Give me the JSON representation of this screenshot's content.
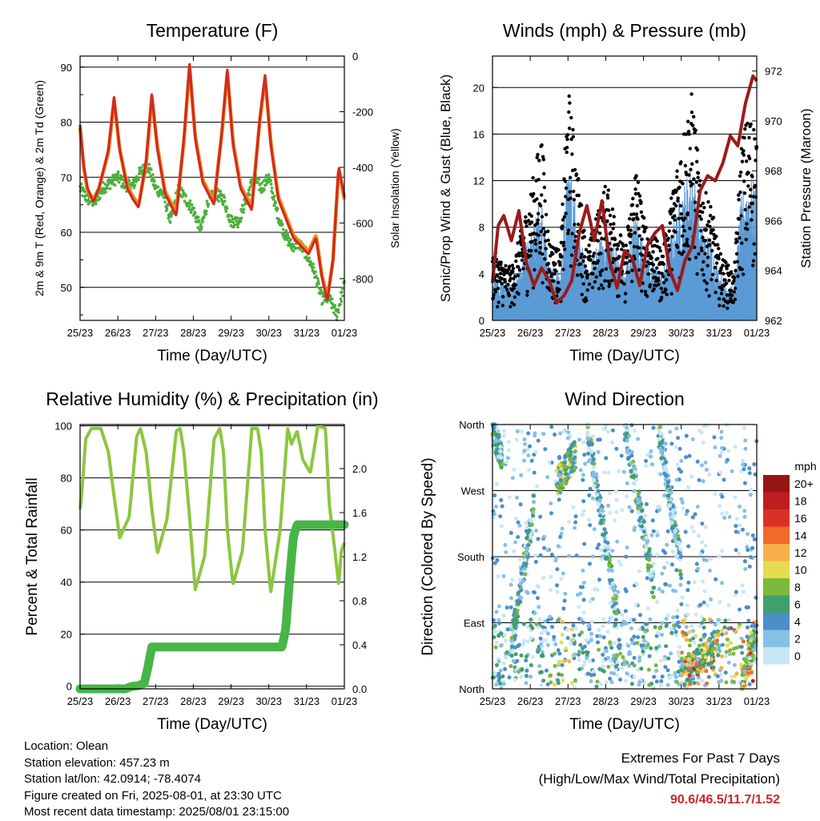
{
  "x_ticks": [
    "25/23",
    "26/23",
    "27/23",
    "28/23",
    "29/23",
    "30/23",
    "31/23",
    "01/23"
  ],
  "info": {
    "location": "Location: Olean",
    "elevation": "Station elevation: 457.23 m",
    "latlon": "Station lat/lon: 42.0914; -78.4074",
    "created": "Figure created on Fri, 2025-08-01, at 23:30 UTC",
    "recent": "Most recent data timestamp: 2025/08/01 23:15:00"
  },
  "extremes": {
    "title": "Extremes For Past 7 Days",
    "subtitle": "(High/Low/Max Wind/Total Precipitation)",
    "values": "90.6/46.5/11.7/1.52",
    "color": "#c8282d"
  },
  "colors": {
    "temp2m": "#d22a1e",
    "temp9m": "#f28c1e",
    "dewpoint": "#4daf3c",
    "wind": "#5b9bd5",
    "gust": "#000000",
    "pressure": "#9b1b1b",
    "rh": "#8cc63f",
    "rain": "#48b548"
  },
  "chart_data": [
    {
      "type": "line",
      "title": "Temperature (F)",
      "xlabel": "Time (Day/UTC)",
      "ylabel": "2m & 9m T (Red, Orange) & 2m Td (Green)",
      "y2label": "Solar Insolation (Yellow)",
      "x_range_days": [
        0,
        7
      ],
      "ylim": [
        44,
        92
      ],
      "yticks": [
        50,
        60,
        70,
        80,
        90
      ],
      "y2lim": [
        -950,
        0
      ],
      "y2ticks": [
        0,
        -200,
        -400,
        -600,
        -800
      ],
      "series": [
        {
          "name": "2m T",
          "color": "#d22a1e",
          "x": [
            0.0,
            0.1,
            0.2,
            0.35,
            0.5,
            0.75,
            0.9,
            1.05,
            1.25,
            1.4,
            1.55,
            1.75,
            1.9,
            2.05,
            2.25,
            2.4,
            2.55,
            2.75,
            2.9,
            3.05,
            3.25,
            3.4,
            3.55,
            3.75,
            3.9,
            4.05,
            4.25,
            4.4,
            4.55,
            4.75,
            4.9,
            5.05,
            5.25,
            5.45,
            5.65,
            5.85,
            6.05,
            6.25,
            6.4,
            6.55,
            6.7,
            6.85,
            7.0
          ],
          "y": [
            79.5,
            72,
            68,
            65.5,
            68,
            75,
            84.5,
            75,
            68,
            66,
            64.5,
            73,
            85,
            75,
            67,
            65,
            63,
            77,
            90.5,
            77,
            69,
            67,
            65,
            78,
            89.5,
            76,
            68,
            66,
            64,
            80,
            88.5,
            76,
            66,
            62.5,
            59,
            57.5,
            56,
            59,
            52,
            47.5,
            55,
            72,
            66.5
          ]
        },
        {
          "name": "9m T",
          "color": "#f28c1e",
          "x": [
            0.0,
            0.1,
            0.2,
            0.35,
            0.5,
            0.75,
            0.9,
            1.05,
            1.25,
            1.4,
            1.55,
            1.75,
            1.9,
            2.05,
            2.25,
            2.4,
            2.55,
            2.75,
            2.9,
            3.05,
            3.25,
            3.4,
            3.55,
            3.75,
            3.9,
            4.05,
            4.25,
            4.4,
            4.55,
            4.75,
            4.9,
            5.05,
            5.25,
            5.45,
            5.65,
            5.85,
            6.05,
            6.25,
            6.4,
            6.55,
            6.7,
            6.85,
            7.0
          ],
          "y": [
            79,
            71.5,
            67.5,
            66,
            68,
            74.5,
            84,
            75,
            68.5,
            66.5,
            65,
            72.5,
            84.5,
            75.5,
            67.5,
            65.5,
            64,
            76.5,
            90,
            77.5,
            69.5,
            67.5,
            66,
            77.5,
            89,
            76.5,
            68.5,
            66.5,
            65,
            79.5,
            88,
            76.5,
            66.5,
            63,
            59.5,
            58,
            56.5,
            59.5,
            52.5,
            48,
            55,
            71.5,
            66
          ]
        },
        {
          "name": "2m Td",
          "color": "#4daf3c",
          "x": [
            0.0,
            0.2,
            0.4,
            0.6,
            0.8,
            1.0,
            1.2,
            1.4,
            1.6,
            1.8,
            2.0,
            2.2,
            2.4,
            2.6,
            2.8,
            3.0,
            3.2,
            3.4,
            3.6,
            3.8,
            4.0,
            4.2,
            4.4,
            4.6,
            4.8,
            5.0,
            5.2,
            5.4,
            5.6,
            5.8,
            6.0,
            6.2,
            6.4,
            6.6,
            6.8,
            7.0
          ],
          "y": [
            68,
            66,
            65.5,
            68,
            69,
            70,
            68.5,
            68.5,
            71,
            72,
            68,
            67,
            62,
            68,
            66,
            64,
            60.5,
            66,
            67,
            66,
            62,
            62,
            66,
            70,
            68,
            70,
            64,
            60,
            57.5,
            58,
            56,
            53,
            48,
            48,
            45,
            50.5
          ]
        }
      ]
    },
    {
      "type": "scatter",
      "title": "Winds (mph) & Pressure (mb)",
      "xlabel": "Time (Day/UTC)",
      "ylabel": "Sonic/Prop Wind & Gust (Blue, Black)",
      "y2label": "Station Pressure (Maroon)",
      "x_range_days": [
        0,
        7
      ],
      "ylim": [
        0,
        22.7
      ],
      "yticks": [
        0,
        4,
        8,
        12,
        16,
        20
      ],
      "y2lim": [
        962,
        972.6
      ],
      "y2ticks": [
        962,
        964,
        966,
        968,
        970,
        972
      ],
      "wind_gust_envelope": {
        "x": [
          0,
          0.5,
          1.0,
          1.3,
          1.5,
          1.8,
          2.0,
          2.5,
          3.0,
          3.3,
          3.5,
          3.8,
          4.0,
          4.5,
          5.0,
          5.3,
          5.5,
          5.8,
          6.0,
          6.4,
          6.6,
          6.8,
          7.0
        ],
        "gust_peak": [
          6,
          4.5,
          11,
          16.5,
          7,
          6,
          20.5,
          6,
          12,
          9,
          6,
          14,
          9,
          6,
          16,
          20,
          12,
          10,
          6,
          4,
          16,
          18,
          17
        ]
      },
      "pressure": {
        "name": "Station Pressure",
        "color": "#9b1b1b",
        "x": [
          0.0,
          0.15,
          0.3,
          0.5,
          0.7,
          0.9,
          1.1,
          1.3,
          1.5,
          1.7,
          1.9,
          2.1,
          2.3,
          2.5,
          2.7,
          2.9,
          3.1,
          3.3,
          3.5,
          3.7,
          3.9,
          4.1,
          4.3,
          4.5,
          4.7,
          4.9,
          5.1,
          5.3,
          5.5,
          5.7,
          5.9,
          6.1,
          6.3,
          6.5,
          6.7,
          6.9,
          7.0
        ],
        "y": [
          963.5,
          965.8,
          966.2,
          965.2,
          966.4,
          964.3,
          963.4,
          964.1,
          963.6,
          962.7,
          963,
          963.6,
          965.5,
          966.6,
          965.2,
          966.8,
          964.4,
          963.3,
          964.8,
          964.5,
          963.4,
          965,
          965.5,
          965.8,
          964,
          963.2,
          964.4,
          965,
          967.2,
          967.8,
          967.6,
          968.3,
          969.4,
          969,
          970.7,
          971.8,
          971.6
        ]
      }
    },
    {
      "type": "line",
      "title": "Relative Humidity (%) & Precipitation (in)",
      "xlabel": "Time (Day/UTC)",
      "ylabel": "Percent & Total Rainfall",
      "x_range_days": [
        0,
        7
      ],
      "ylim": [
        -1,
        100.5
      ],
      "yticks": [
        0,
        20,
        40,
        60,
        80,
        100
      ],
      "y2lim": [
        0,
        2.4
      ],
      "y2ticks": [
        0.0,
        0.4,
        0.8,
        1.2,
        1.6,
        2.0
      ],
      "series": [
        {
          "name": "RH",
          "color": "#8cc63f",
          "x": [
            0.0,
            0.05,
            0.15,
            0.3,
            0.55,
            0.75,
            0.9,
            1.05,
            1.3,
            1.5,
            1.6,
            1.75,
            1.9,
            2.05,
            2.3,
            2.55,
            2.65,
            2.75,
            2.9,
            3.05,
            3.3,
            3.55,
            3.7,
            3.8,
            3.9,
            4.05,
            4.3,
            4.55,
            4.7,
            4.8,
            4.9,
            5.05,
            5.3,
            5.5,
            5.6,
            5.75,
            5.9,
            6.1,
            6.3,
            6.5,
            6.6,
            6.75,
            6.85,
            6.92,
            7.0
          ],
          "y": [
            68,
            75,
            95,
            99,
            99,
            90,
            73,
            57,
            65,
            96,
            99,
            90,
            68,
            51,
            64,
            98,
            99,
            90,
            65,
            37,
            50,
            95,
            99,
            90,
            60,
            39,
            52,
            99,
            99,
            90,
            60,
            36,
            60,
            99,
            93,
            98,
            87,
            82,
            100,
            99,
            70,
            52,
            39,
            52,
            55
          ]
        },
        {
          "name": "Total Rainfall",
          "color": "#48b548",
          "x": [
            0.0,
            1.2,
            1.35,
            1.55,
            1.7,
            1.8,
            1.9,
            2.0,
            5.35,
            5.45,
            5.55,
            5.65,
            5.75,
            6.0,
            7.0
          ],
          "y": [
            0.0,
            0.0,
            0.02,
            0.03,
            0.05,
            0.2,
            0.38,
            0.38,
            0.38,
            0.55,
            1.0,
            1.38,
            1.49,
            1.49,
            1.49
          ]
        }
      ]
    },
    {
      "type": "scatter",
      "title": "Wind Direction",
      "xlabel": "Time (Day/UTC)",
      "ylabel": "Direction (Colored By Speed)",
      "x_range_days": [
        0,
        7
      ],
      "ylim_deg": [
        0,
        360
      ],
      "ytick_labels": [
        "North",
        "East",
        "South",
        "West",
        "North"
      ],
      "ytick_values": [
        0,
        90,
        180,
        270,
        360
      ],
      "colorbar": {
        "title": "mph",
        "labels": [
          "0",
          "2",
          "4",
          "6",
          "8",
          "10",
          "12",
          "14",
          "16",
          "18",
          "20+"
        ],
        "colors": [
          "#c8e6f5",
          "#86c0e6",
          "#4a8ec8",
          "#3ea06a",
          "#7cb83a",
          "#e6dc50",
          "#f7b04a",
          "#f06a2a",
          "#dc3026",
          "#be1e22",
          "#961414"
        ]
      },
      "trend_segments": [
        {
          "x": [
            0.0,
            0.25
          ],
          "dir": [
            350,
            320
          ]
        },
        {
          "x": [
            0.5,
            1.1
          ],
          "dir": [
            60,
            250
          ]
        },
        {
          "x": [
            1.7,
            2.2
          ],
          "dir": [
            280,
            320
          ]
        },
        {
          "x": [
            2.5,
            3.3
          ],
          "dir": [
            360,
            100
          ]
        },
        {
          "x": [
            3.5,
            4.3
          ],
          "dir": [
            360,
            130
          ]
        },
        {
          "x": [
            4.4,
            5.0
          ],
          "dir": [
            350,
            170
          ]
        },
        {
          "x": [
            5.0,
            6.0
          ],
          "dir": [
            20,
            60
          ]
        },
        {
          "x": [
            6.6,
            7.0
          ],
          "dir": [
            10,
            80
          ]
        }
      ]
    }
  ]
}
